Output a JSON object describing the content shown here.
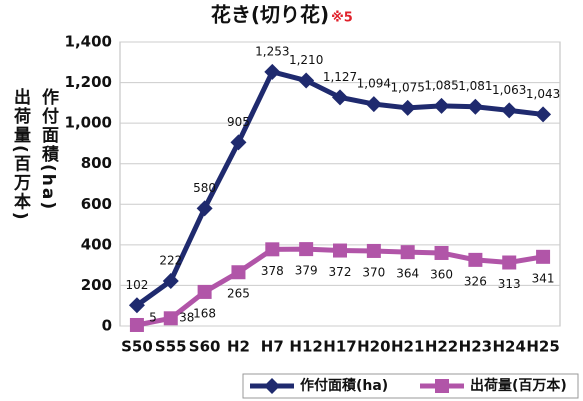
{
  "chart_data": {
    "type": "line",
    "title": "花き(切り花)",
    "note": "※5",
    "y_label": "作付面積(ha)",
    "y_label_2": "出荷量(百万本)",
    "categories": [
      "S50",
      "S55",
      "S60",
      "H2",
      "H7",
      "H12",
      "H17",
      "H20",
      "H21",
      "H22",
      "H23",
      "H24",
      "H25"
    ],
    "series": [
      {
        "name": "作付面積(ha)",
        "color": "#1f2a6e",
        "values": [
          102,
          222,
          580,
          905,
          1253,
          1210,
          1127,
          1094,
          1075,
          1085,
          1081,
          1063,
          1043
        ],
        "value_labels": [
          "102",
          "222",
          "580",
          "905",
          "1,253",
          "1,210",
          "1,127",
          "1,094",
          "1,075",
          "1,085",
          "1,081",
          "1,063",
          "1,043"
        ]
      },
      {
        "name": "出荷量(百万本)",
        "color": "#b155a8",
        "values": [
          5,
          38,
          168,
          265,
          378,
          379,
          372,
          370,
          364,
          360,
          326,
          313,
          341
        ]
      }
    ],
    "ylim": [
      0,
      1400
    ],
    "yticks": [
      0,
      200,
      400,
      600,
      800,
      {
        "value": 1000,
        "label": "1,000"
      },
      {
        "value": 1200,
        "label": "1,200"
      },
      {
        "value": 1400,
        "label": "1,400"
      }
    ],
    "grid": true,
    "legend": "bottom"
  }
}
